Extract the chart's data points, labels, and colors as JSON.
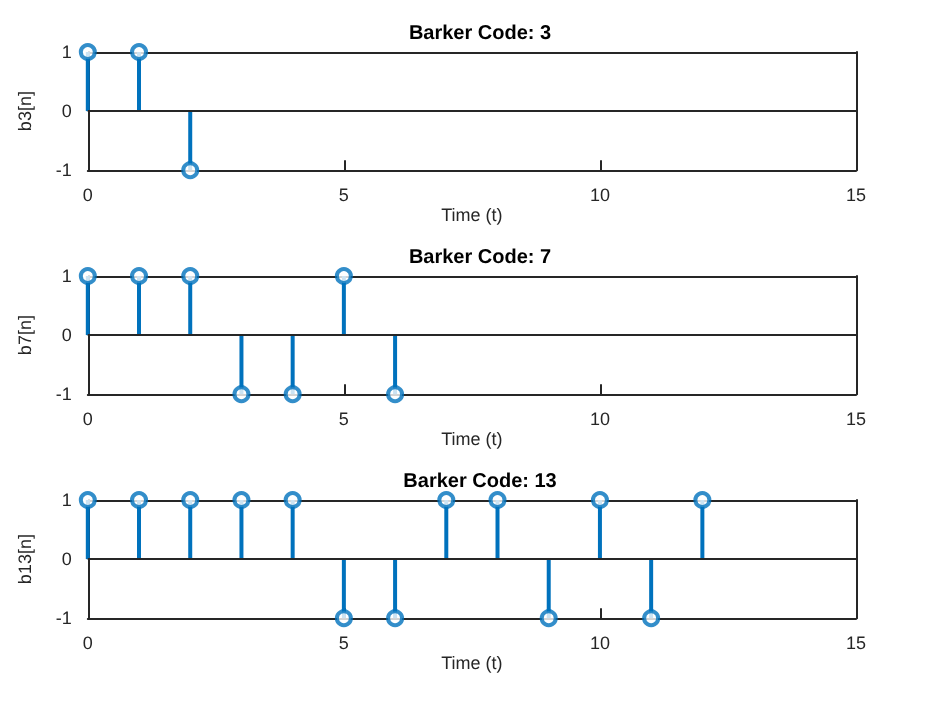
{
  "chart_data": [
    {
      "type": "lollipop",
      "title": "Barker Code: 3",
      "xlabel": "Time (t)",
      "ylabel": "b3[n]",
      "x": [
        0,
        1,
        2
      ],
      "series": [
        {
          "color": "#0072bd",
          "values": [
            1,
            1,
            -1
          ]
        }
      ],
      "xlim": [
        0,
        15
      ],
      "xticks": [
        0,
        5,
        10,
        15
      ],
      "ylim": [
        -1,
        1
      ],
      "yticks": [
        -1,
        0,
        1
      ],
      "marker": "circle",
      "ref_lines": [
        {
          "axis": "y",
          "value": 0
        }
      ]
    },
    {
      "type": "lollipop",
      "title": "Barker Code: 7",
      "xlabel": "Time (t)",
      "ylabel": "b7[n]",
      "x": [
        0,
        1,
        2,
        3,
        4,
        5,
        6
      ],
      "series": [
        {
          "color": "#0072bd",
          "values": [
            1,
            1,
            1,
            -1,
            -1,
            1,
            -1
          ]
        }
      ],
      "xlim": [
        0,
        15
      ],
      "xticks": [
        0,
        5,
        10,
        15
      ],
      "ylim": [
        -1,
        1
      ],
      "yticks": [
        -1,
        0,
        1
      ],
      "marker": "circle",
      "ref_lines": [
        {
          "axis": "y",
          "value": 0
        }
      ]
    },
    {
      "type": "lollipop",
      "title": "Barker Code: 13",
      "xlabel": "Time (t)",
      "ylabel": "b13[n]",
      "x": [
        0,
        1,
        2,
        3,
        4,
        5,
        6,
        7,
        8,
        9,
        10,
        11,
        12
      ],
      "series": [
        {
          "color": "#0072bd",
          "values": [
            1,
            1,
            1,
            1,
            1,
            -1,
            -1,
            1,
            1,
            -1,
            1,
            -1,
            1
          ]
        }
      ],
      "xlim": [
        0,
        15
      ],
      "xticks": [
        0,
        5,
        10,
        15
      ],
      "ylim": [
        -1,
        1
      ],
      "yticks": [
        -1,
        0,
        1
      ],
      "marker": "circle",
      "ref_lines": [
        {
          "axis": "y",
          "value": 0
        }
      ]
    }
  ]
}
